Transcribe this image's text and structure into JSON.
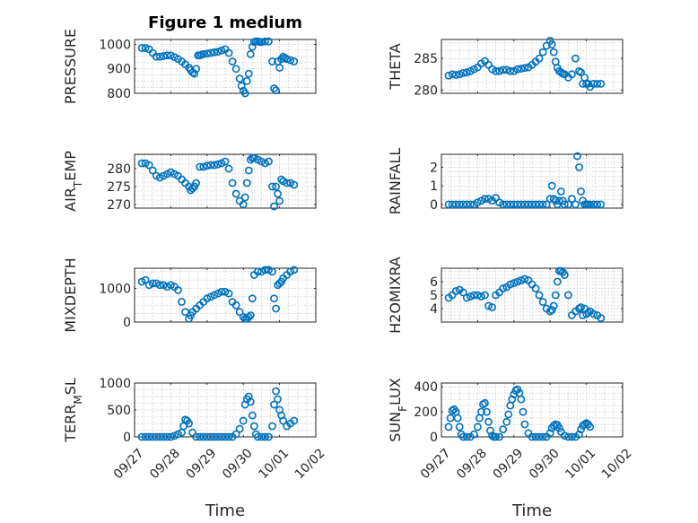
{
  "figure": {
    "title": "Figure 1 medium"
  },
  "chart_data": [
    {
      "type": "scatter",
      "ylabel": "PRESSURE",
      "ylim": [
        800,
        1020
      ],
      "yticks": [
        800,
        900,
        1000
      ],
      "ytick_labels": [
        "800",
        "900",
        "1000"
      ],
      "xlim": [
        0,
        5
      ],
      "xtick_labels": [
        "09/27",
        "09/28",
        "09/29",
        "09/30",
        "10/01",
        "10/02"
      ],
      "xlabel": "",
      "grid": true,
      "series": [
        {
          "x": [
            0.2,
            0.3,
            0.4,
            0.5,
            0.6,
            0.7,
            0.8,
            0.9,
            1.0,
            1.1,
            1.2,
            1.3,
            1.4,
            1.5,
            1.55,
            1.6,
            1.65,
            1.7,
            1.75,
            1.8,
            1.85,
            1.9,
            2.0,
            2.1,
            2.2,
            2.3,
            2.4,
            2.5,
            2.6,
            2.7,
            2.8,
            2.9,
            2.95,
            3.0,
            3.05,
            3.1,
            3.15,
            3.2,
            3.25,
            3.3,
            3.35,
            3.4,
            3.45,
            3.5,
            3.6,
            3.7,
            3.8,
            3.85,
            3.9,
            3.95,
            4.0,
            4.05,
            4.1,
            4.15,
            4.2,
            4.3,
            4.4
          ],
          "y": [
            985,
            985,
            980,
            965,
            950,
            950,
            952,
            955,
            955,
            948,
            940,
            930,
            918,
            905,
            895,
            885,
            880,
            900,
            955,
            955,
            958,
            960,
            962,
            965,
            968,
            970,
            975,
            980,
            965,
            930,
            900,
            860,
            830,
            810,
            800,
            850,
            880,
            960,
            990,
            1010,
            1012,
            1012,
            1010,
            1010,
            1012,
            1012,
            930,
            820,
            812,
            930,
            905,
            940,
            950,
            945,
            940,
            935,
            930
          ]
        }
      ]
    },
    {
      "type": "scatter",
      "ylabel": "THETA",
      "ylim": [
        279.5,
        288
      ],
      "yticks": [
        280,
        285
      ],
      "ytick_labels": [
        "280",
        "285"
      ],
      "xlim": [
        0,
        5
      ],
      "xtick_labels": [
        "09/27",
        "09/28",
        "09/29",
        "09/30",
        "10/01",
        "10/02"
      ],
      "xlabel": "",
      "grid": true,
      "series": [
        {
          "x": [
            0.2,
            0.3,
            0.4,
            0.5,
            0.6,
            0.7,
            0.8,
            0.9,
            1.0,
            1.1,
            1.2,
            1.3,
            1.4,
            1.5,
            1.6,
            1.7,
            1.8,
            1.9,
            2.0,
            2.1,
            2.2,
            2.3,
            2.4,
            2.5,
            2.6,
            2.7,
            2.8,
            2.9,
            3.0,
            3.05,
            3.1,
            3.15,
            3.2,
            3.25,
            3.3,
            3.35,
            3.4,
            3.5,
            3.6,
            3.7,
            3.8,
            3.85,
            3.9,
            3.95,
            4.0,
            4.05,
            4.1,
            4.2,
            4.3,
            4.4
          ],
          "y": [
            282.3,
            282.5,
            282.4,
            282.5,
            282.7,
            282.8,
            283.0,
            283.3,
            283.6,
            284.2,
            284.6,
            284.0,
            283.3,
            283.0,
            283.0,
            283.2,
            283.2,
            283.0,
            283.0,
            283.3,
            283.4,
            283.5,
            283.6,
            284.0,
            284.5,
            285.0,
            286.0,
            287.0,
            287.8,
            287.2,
            286.0,
            284.5,
            283.5,
            283.0,
            282.8,
            282.6,
            282.5,
            282.0,
            282.5,
            285.0,
            283.0,
            282.8,
            281.0,
            282.0,
            281.0,
            281.0,
            280.5,
            281.0,
            281.0,
            281.0
          ]
        }
      ]
    },
    {
      "type": "scatter",
      "ylabel": "AIR_TEMP",
      "ylim": [
        269,
        284
      ],
      "yticks": [
        270,
        275,
        280
      ],
      "ytick_labels": [
        "270",
        "275",
        "280"
      ],
      "xlim": [
        0,
        5
      ],
      "xtick_labels": [
        "09/27",
        "09/28",
        "09/29",
        "09/30",
        "10/01",
        "10/02"
      ],
      "xlabel": "",
      "grid": true,
      "series": [
        {
          "x": [
            0.2,
            0.3,
            0.4,
            0.5,
            0.6,
            0.7,
            0.8,
            0.9,
            1.0,
            1.1,
            1.2,
            1.3,
            1.4,
            1.5,
            1.55,
            1.6,
            1.65,
            1.7,
            1.8,
            1.9,
            2.0,
            2.1,
            2.2,
            2.3,
            2.4,
            2.5,
            2.6,
            2.7,
            2.8,
            2.9,
            3.0,
            3.05,
            3.1,
            3.15,
            3.2,
            3.25,
            3.3,
            3.4,
            3.5,
            3.6,
            3.7,
            3.8,
            3.85,
            3.9,
            3.95,
            4.0,
            4.05,
            4.1,
            4.2,
            4.3,
            4.4
          ],
          "y": [
            281.5,
            281.5,
            281.0,
            279.5,
            278.0,
            277.5,
            278.0,
            278.5,
            279.0,
            278.5,
            278.0,
            277.0,
            276.0,
            275.0,
            274.0,
            274.5,
            275.0,
            276.0,
            280.5,
            280.5,
            280.8,
            281.0,
            281.0,
            281.2,
            281.5,
            282.0,
            280.0,
            276.0,
            273.0,
            271.0,
            270.0,
            272.0,
            276.0,
            279.5,
            282.5,
            283.0,
            283.0,
            282.5,
            282.0,
            281.5,
            282.0,
            275.0,
            269.5,
            275.0,
            273.0,
            271.0,
            277.0,
            276.5,
            276.0,
            276.0,
            275.5
          ]
        }
      ]
    },
    {
      "type": "scatter",
      "ylabel": "RAINFALL",
      "ylim": [
        -0.2,
        2.7
      ],
      "yticks": [
        0,
        1,
        2
      ],
      "ytick_labels": [
        "0",
        "1",
        "2"
      ],
      "xlim": [
        0,
        5
      ],
      "xtick_labels": [
        "09/27",
        "09/28",
        "09/29",
        "09/30",
        "10/01",
        "10/02"
      ],
      "xlabel": "",
      "grid": true,
      "series": [
        {
          "x": [
            0.2,
            0.3,
            0.4,
            0.5,
            0.6,
            0.7,
            0.8,
            0.9,
            1.0,
            1.1,
            1.2,
            1.3,
            1.4,
            1.5,
            1.6,
            1.7,
            1.8,
            1.9,
            2.0,
            2.1,
            2.2,
            2.3,
            2.4,
            2.5,
            2.6,
            2.7,
            2.8,
            2.9,
            3.0,
            3.05,
            3.1,
            3.15,
            3.2,
            3.25,
            3.3,
            3.35,
            3.4,
            3.5,
            3.6,
            3.7,
            3.75,
            3.8,
            3.85,
            3.9,
            3.95,
            4.0,
            4.05,
            4.1,
            4.2,
            4.3,
            4.4
          ],
          "y": [
            0,
            0,
            0,
            0,
            0,
            0,
            0,
            0,
            0.1,
            0.2,
            0.3,
            0.3,
            0.2,
            0.35,
            0.1,
            0,
            0,
            0,
            0,
            0,
            0,
            0,
            0,
            0,
            0,
            0,
            0,
            0,
            0.3,
            1.0,
            0.3,
            0.2,
            0,
            0.2,
            0.7,
            0.2,
            0,
            0,
            0.3,
            0,
            2.6,
            2.0,
            0.7,
            0.2,
            0,
            0,
            0,
            0,
            0,
            0,
            0
          ]
        }
      ]
    },
    {
      "type": "scatter",
      "ylabel": "MIXDEPTH",
      "ylim": [
        0,
        1600
      ],
      "yticks": [
        0,
        1000
      ],
      "ytick_labels": [
        "0",
        "1000"
      ],
      "xlim": [
        0,
        5
      ],
      "xtick_labels": [
        "09/27",
        "09/28",
        "09/29",
        "09/30",
        "10/01",
        "10/02"
      ],
      "xlabel": "",
      "grid": true,
      "series": [
        {
          "x": [
            0.2,
            0.3,
            0.4,
            0.5,
            0.6,
            0.7,
            0.8,
            0.9,
            1.0,
            1.1,
            1.2,
            1.3,
            1.4,
            1.5,
            1.55,
            1.6,
            1.7,
            1.8,
            1.9,
            2.0,
            2.1,
            2.2,
            2.3,
            2.4,
            2.5,
            2.6,
            2.7,
            2.8,
            2.9,
            3.0,
            3.05,
            3.1,
            3.15,
            3.2,
            3.25,
            3.3,
            3.4,
            3.5,
            3.6,
            3.7,
            3.8,
            3.85,
            3.9,
            3.95,
            4.0,
            4.05,
            4.1,
            4.2,
            4.3,
            4.4
          ],
          "y": [
            1200,
            1250,
            1100,
            1150,
            1150,
            1100,
            1100,
            1050,
            1100,
            1050,
            950,
            600,
            300,
            100,
            200,
            300,
            400,
            500,
            600,
            700,
            750,
            800,
            850,
            900,
            900,
            850,
            600,
            500,
            300,
            150,
            100,
            100,
            150,
            200,
            700,
            1400,
            1500,
            1500,
            1550,
            1550,
            1500,
            700,
            400,
            1100,
            1150,
            1200,
            1300,
            1400,
            1500,
            1550
          ]
        }
      ]
    },
    {
      "type": "scatter",
      "ylabel": "H2OMIXRA",
      "ylim": [
        3,
        7
      ],
      "yticks": [
        4,
        5,
        6
      ],
      "ytick_labels": [
        "4",
        "5",
        "6"
      ],
      "xlim": [
        0,
        5
      ],
      "xtick_labels": [
        "09/27",
        "09/28",
        "09/29",
        "09/30",
        "10/01",
        "10/02"
      ],
      "xlabel": "",
      "grid": true,
      "series": [
        {
          "x": [
            0.2,
            0.3,
            0.4,
            0.5,
            0.6,
            0.7,
            0.8,
            0.9,
            1.0,
            1.1,
            1.2,
            1.3,
            1.4,
            1.5,
            1.6,
            1.7,
            1.8,
            1.9,
            2.0,
            2.1,
            2.2,
            2.3,
            2.4,
            2.5,
            2.6,
            2.7,
            2.8,
            2.9,
            3.0,
            3.05,
            3.1,
            3.15,
            3.2,
            3.25,
            3.3,
            3.35,
            3.4,
            3.5,
            3.6,
            3.7,
            3.8,
            3.85,
            3.9,
            3.95,
            4.0,
            4.05,
            4.1,
            4.2,
            4.3,
            4.4
          ],
          "y": [
            4.8,
            5.0,
            5.3,
            5.4,
            5.2,
            4.8,
            4.9,
            5.0,
            5.0,
            4.9,
            5.0,
            4.2,
            4.1,
            5.0,
            5.2,
            5.5,
            5.6,
            5.8,
            5.9,
            6.0,
            6.1,
            6.2,
            6.1,
            5.8,
            5.5,
            5.0,
            4.5,
            4.0,
            3.8,
            3.9,
            4.2,
            5.0,
            6.0,
            6.8,
            6.8,
            6.7,
            6.5,
            5.0,
            3.5,
            3.8,
            4.0,
            4.1,
            3.5,
            4.0,
            3.6,
            3.7,
            3.8,
            3.6,
            3.5,
            3.3
          ]
        }
      ]
    },
    {
      "type": "scatter",
      "ylabel": "TERR_MSL",
      "ylim": [
        0,
        1000
      ],
      "yticks": [
        0,
        500,
        1000
      ],
      "ytick_labels": [
        "0",
        "500",
        "1000"
      ],
      "xlim": [
        0,
        5
      ],
      "xtick_labels": [
        "09/27",
        "09/28",
        "09/29",
        "09/30",
        "10/01",
        "10/02"
      ],
      "xlabel": "Time",
      "grid": true,
      "series": [
        {
          "x": [
            0.2,
            0.3,
            0.4,
            0.5,
            0.6,
            0.7,
            0.8,
            0.9,
            1.0,
            1.1,
            1.2,
            1.3,
            1.35,
            1.4,
            1.45,
            1.5,
            1.6,
            1.7,
            1.8,
            1.9,
            2.0,
            2.1,
            2.2,
            2.3,
            2.4,
            2.5,
            2.6,
            2.7,
            2.8,
            2.9,
            3.0,
            3.05,
            3.1,
            3.15,
            3.2,
            3.25,
            3.3,
            3.35,
            3.4,
            3.5,
            3.6,
            3.7,
            3.8,
            3.85,
            3.9,
            3.95,
            4.0,
            4.05,
            4.1,
            4.2,
            4.3,
            4.4
          ],
          "y": [
            0,
            0,
            0,
            0,
            0,
            0,
            0,
            0,
            0,
            20,
            50,
            80,
            200,
            320,
            300,
            250,
            80,
            0,
            0,
            0,
            0,
            0,
            0,
            0,
            0,
            0,
            0,
            0,
            50,
            150,
            300,
            600,
            700,
            750,
            650,
            400,
            200,
            50,
            0,
            0,
            0,
            0,
            200,
            600,
            850,
            700,
            500,
            400,
            300,
            200,
            250,
            300
          ]
        }
      ]
    },
    {
      "type": "scatter",
      "ylabel": "SUN_FLUX",
      "ylim": [
        0,
        430
      ],
      "yticks": [
        0,
        200,
        400
      ],
      "ytick_labels": [
        "0",
        "200",
        "400"
      ],
      "xlim": [
        0,
        5
      ],
      "xtick_labels": [
        "09/27",
        "09/28",
        "09/29",
        "09/30",
        "10/01",
        "10/02"
      ],
      "xlabel": "Time",
      "grid": true,
      "series": [
        {
          "x": [
            0.2,
            0.25,
            0.3,
            0.35,
            0.4,
            0.45,
            0.5,
            0.55,
            0.6,
            0.7,
            0.8,
            0.9,
            1.0,
            1.05,
            1.1,
            1.15,
            1.2,
            1.25,
            1.3,
            1.35,
            1.4,
            1.45,
            1.5,
            1.6,
            1.7,
            1.8,
            1.85,
            1.9,
            1.95,
            2.0,
            2.05,
            2.1,
            2.15,
            2.2,
            2.25,
            2.3,
            2.4,
            2.5,
            2.6,
            2.7,
            2.8,
            2.9,
            3.0,
            3.05,
            3.1,
            3.15,
            3.2,
            3.25,
            3.3,
            3.4,
            3.5,
            3.6,
            3.7,
            3.8,
            3.85,
            3.9,
            3.95,
            4.0,
            4.05,
            4.1
          ],
          "y": [
            80,
            150,
            210,
            220,
            200,
            150,
            80,
            20,
            0,
            0,
            0,
            20,
            80,
            150,
            200,
            260,
            270,
            200,
            120,
            50,
            10,
            0,
            0,
            0,
            60,
            120,
            180,
            250,
            300,
            340,
            370,
            380,
            350,
            300,
            200,
            100,
            30,
            0,
            0,
            0,
            0,
            0,
            30,
            70,
            90,
            100,
            95,
            70,
            40,
            10,
            0,
            0,
            0,
            20,
            60,
            90,
            100,
            110,
            100,
            80
          ]
        }
      ]
    }
  ]
}
